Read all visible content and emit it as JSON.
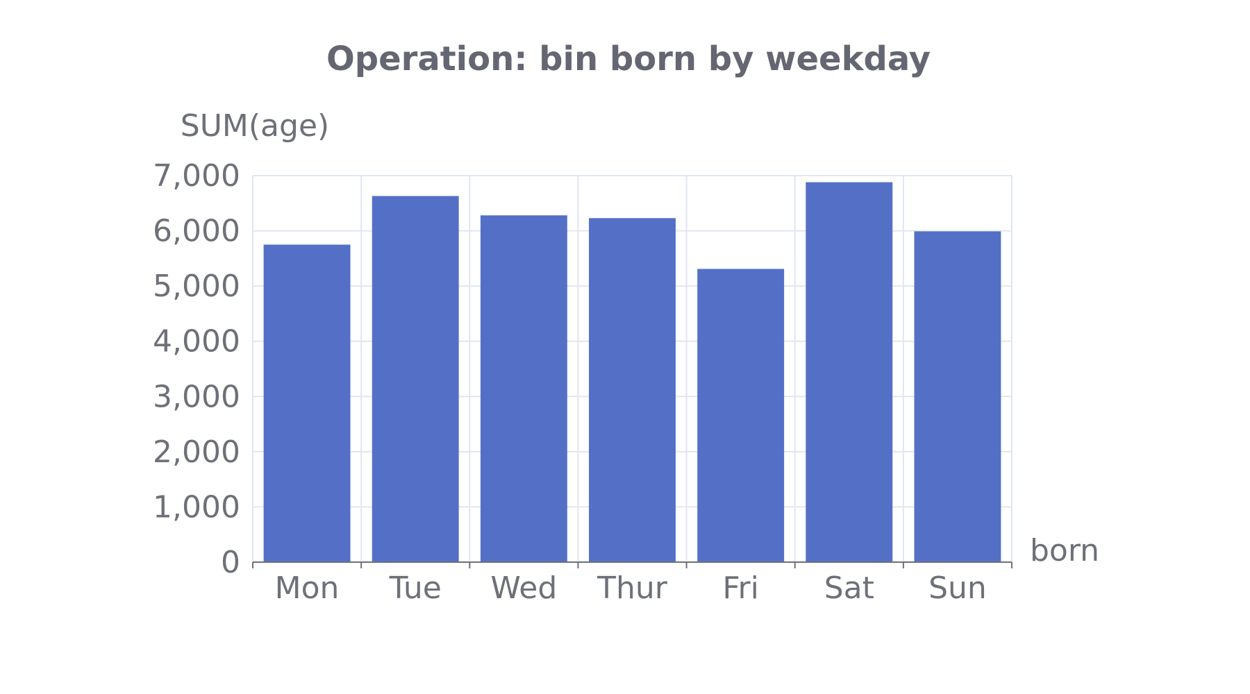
{
  "colors": {
    "bar": "#5470c6",
    "text": "#6e7079",
    "title": "#646672",
    "grid": "#e0e6f1",
    "background": "#ffffff"
  },
  "chart_data": {
    "type": "bar",
    "title": "Operation: bin born by weekday",
    "xlabel": "born",
    "ylabel": "SUM(age)",
    "categories": [
      "Mon",
      "Tue",
      "Wed",
      "Thur",
      "Fri",
      "Sat",
      "Sun"
    ],
    "values": [
      5750,
      6630,
      6280,
      6230,
      5310,
      6880,
      5990
    ],
    "ylim": [
      0,
      7000
    ],
    "yticks": [
      "0",
      "1,000",
      "2,000",
      "3,000",
      "4,000",
      "5,000",
      "6,000",
      "7,000"
    ],
    "ytick_values": [
      0,
      1000,
      2000,
      3000,
      4000,
      5000,
      6000,
      7000
    ],
    "grid": true,
    "legend": "none"
  }
}
